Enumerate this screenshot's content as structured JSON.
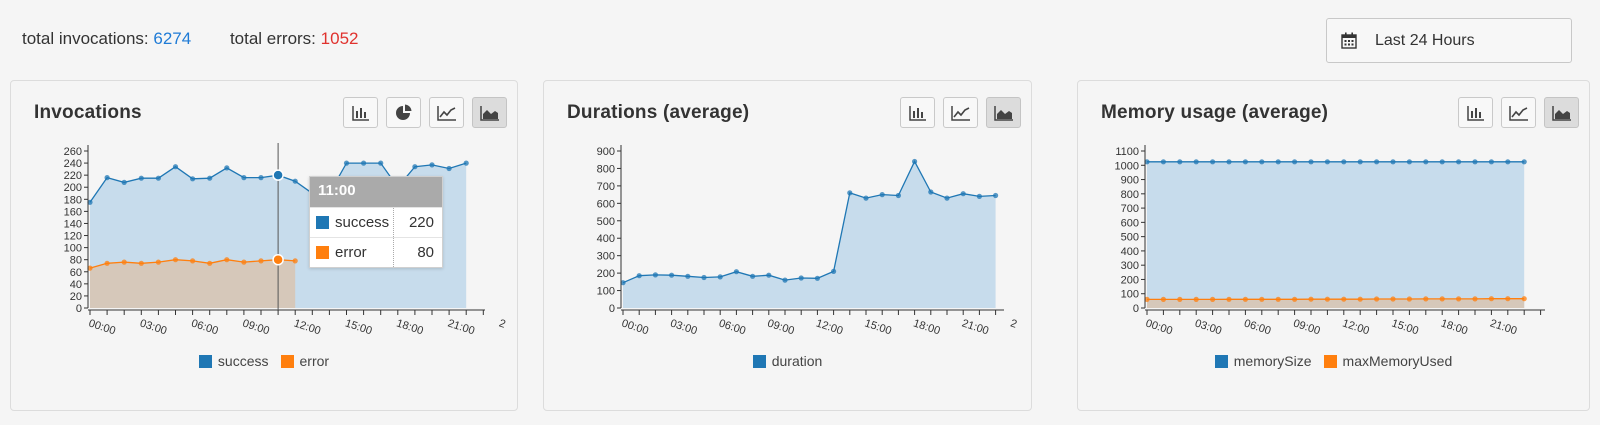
{
  "summary": {
    "invocations_label": "total invocations:",
    "invocations_value": "6274",
    "errors_label": "total errors:",
    "errors_value": "1052"
  },
  "date_range": {
    "label": "Last 24 Hours",
    "icon": "calendar-icon"
  },
  "colors": {
    "blue": "#1f77b4",
    "orange": "#ff7f0e",
    "blue_fill": "#c7dcec",
    "orange_fill": "#d7c6b7",
    "invocations": "#1f7bd6",
    "errors": "#e0322e"
  },
  "panels": [
    {
      "title": "Invocations",
      "buttons": [
        "bar-chart-icon",
        "pie-chart-icon",
        "line-chart-icon",
        "area-chart-icon"
      ],
      "active_button": "area-chart-icon"
    },
    {
      "title": "Durations (average)",
      "buttons": [
        "bar-chart-icon",
        "line-chart-icon",
        "area-chart-icon"
      ],
      "active_button": "area-chart-icon"
    },
    {
      "title": "Memory usage (average)",
      "buttons": [
        "bar-chart-icon",
        "line-chart-icon",
        "area-chart-icon"
      ],
      "active_button": "area-chart-icon"
    }
  ],
  "tooltip": {
    "title": "11:00",
    "rows": [
      {
        "name": "success",
        "value": "220"
      },
      {
        "name": "error",
        "value": "80"
      }
    ]
  },
  "chart_data": [
    {
      "type": "area",
      "title": "Invocations",
      "x_ticks": [
        "00:00",
        "03:00",
        "06:00",
        "09:00",
        "12:00",
        "15:00",
        "18:00",
        "21:00",
        "2"
      ],
      "ylim": [
        0,
        260
      ],
      "y_ticks": [
        0,
        20,
        40,
        60,
        80,
        100,
        120,
        140,
        160,
        180,
        200,
        220,
        240,
        260
      ],
      "legend": "bottom",
      "series": [
        {
          "name": "success",
          "color": "#1f77b4",
          "values": [
            175,
            216,
            208,
            215,
            215,
            234,
            214,
            215,
            232,
            216,
            216,
            220,
            210,
            190,
            190,
            240,
            240,
            240,
            200,
            234,
            237,
            231,
            240
          ]
        },
        {
          "name": "error",
          "color": "#ff7f0e",
          "values": [
            66,
            74,
            76,
            74,
            76,
            80,
            78,
            74,
            80,
            76,
            78,
            80,
            78
          ]
        }
      ],
      "tooltip_index": 11
    },
    {
      "type": "area",
      "title": "Durations (average)",
      "x_ticks": [
        "00:00",
        "03:00",
        "06:00",
        "09:00",
        "12:00",
        "15:00",
        "18:00",
        "21:00",
        "2"
      ],
      "ylim": [
        0,
        900
      ],
      "y_ticks": [
        0,
        100,
        200,
        300,
        400,
        500,
        600,
        700,
        800,
        900
      ],
      "legend": "bottom",
      "series": [
        {
          "name": "duration",
          "color": "#1f77b4",
          "values": [
            145,
            185,
            190,
            188,
            182,
            175,
            178,
            208,
            182,
            188,
            160,
            172,
            170,
            210,
            660,
            630,
            650,
            645,
            840,
            665,
            630,
            655,
            640,
            645
          ]
        }
      ]
    },
    {
      "type": "area",
      "title": "Memory usage (average)",
      "x_ticks": [
        "00:00",
        "03:00",
        "06:00",
        "09:00",
        "12:00",
        "15:00",
        "18:00",
        "21:00"
      ],
      "ylim": [
        0,
        1100
      ],
      "y_ticks": [
        0,
        100,
        200,
        300,
        400,
        500,
        600,
        700,
        800,
        900,
        1000,
        1100
      ],
      "legend": "bottom",
      "series": [
        {
          "name": "memorySize",
          "color": "#1f77b4",
          "values": [
            1024,
            1024,
            1024,
            1024,
            1024,
            1024,
            1024,
            1024,
            1024,
            1024,
            1024,
            1024,
            1024,
            1024,
            1024,
            1024,
            1024,
            1024,
            1024,
            1024,
            1024,
            1024,
            1024,
            1024
          ]
        },
        {
          "name": "maxMemoryUsed",
          "color": "#ff7f0e",
          "values": [
            60,
            60,
            60,
            60,
            60,
            61,
            61,
            61,
            61,
            61,
            62,
            62,
            62,
            62,
            63,
            63,
            63,
            64,
            64,
            64,
            64,
            65,
            65,
            65
          ]
        }
      ]
    }
  ]
}
